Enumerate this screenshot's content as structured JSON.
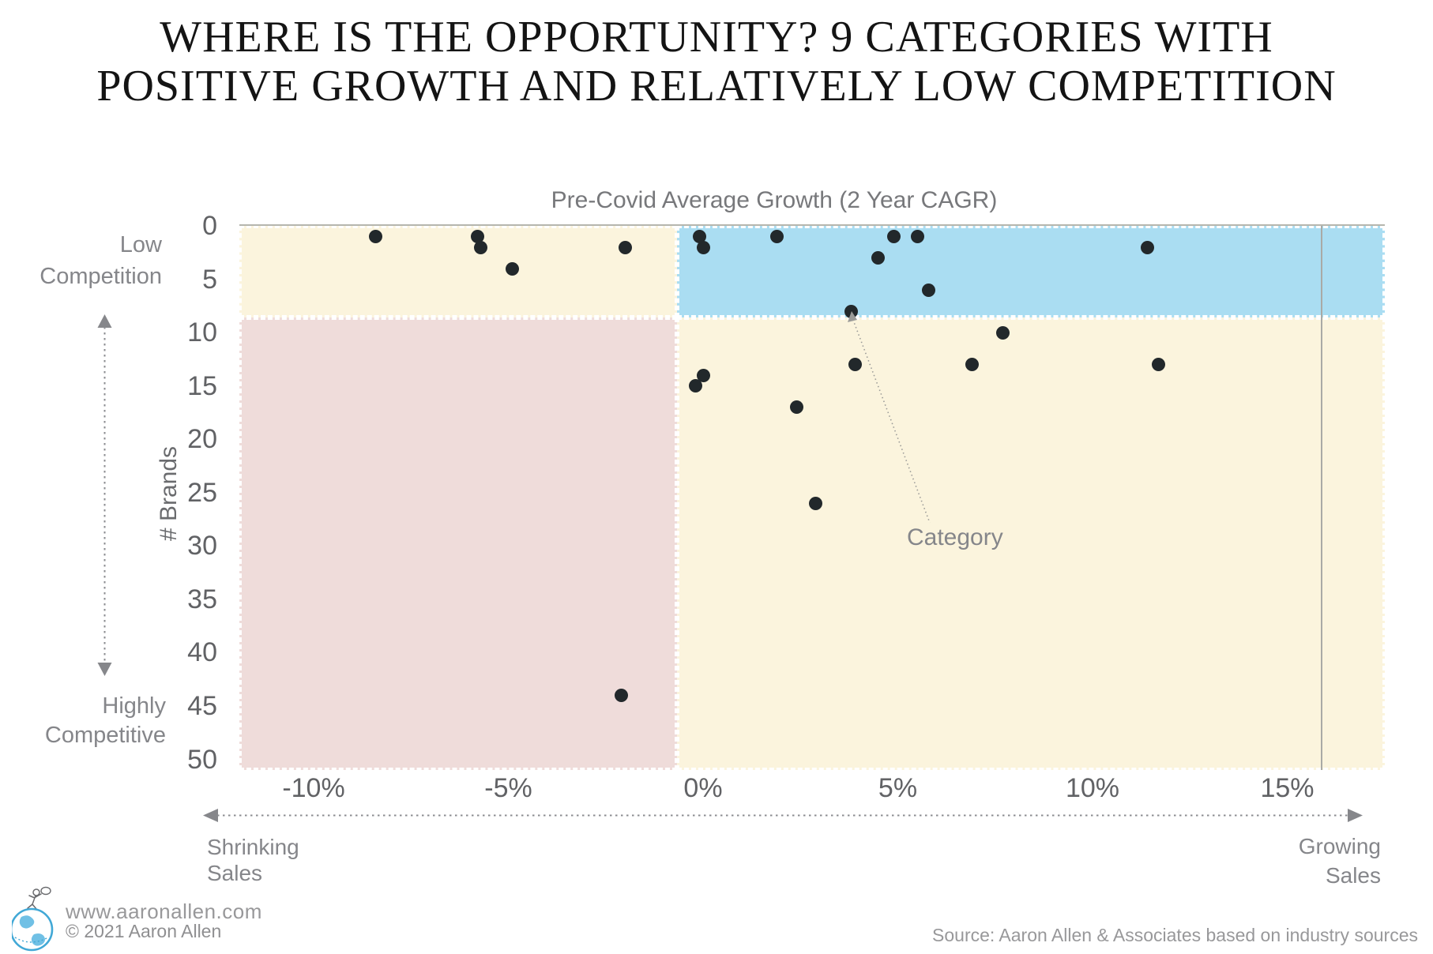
{
  "title": {
    "line1": "WHERE IS THE OPPORTUNITY? 9 CATEGORIES WITH",
    "line2": "POSITIVE GROWTH AND RELATIVELY LOW COMPETITION"
  },
  "chart_data": {
    "type": "scatter",
    "x_axis": {
      "title": "Pre-Covid Average Growth (2 Year CAGR)",
      "ticks": [
        {
          "label": "-10%",
          "value": -10
        },
        {
          "label": "-5%",
          "value": -5
        },
        {
          "label": "0%",
          "value": 0
        },
        {
          "label": "5%",
          "value": 5
        },
        {
          "label": "10%",
          "value": 10
        },
        {
          "label": "15%",
          "value": 15
        }
      ],
      "range": [
        -11.9,
        17.5
      ]
    },
    "y_axis": {
      "title": "# Brands",
      "ticks": [
        {
          "label": "0",
          "value": 0
        },
        {
          "label": "5",
          "value": 5
        },
        {
          "label": "10",
          "value": 10
        },
        {
          "label": "15",
          "value": 15
        },
        {
          "label": "20",
          "value": 20
        },
        {
          "label": "25",
          "value": 25
        },
        {
          "label": "30",
          "value": 30
        },
        {
          "label": "35",
          "value": 35
        },
        {
          "label": "40",
          "value": 40
        },
        {
          "label": "45",
          "value": 45
        },
        {
          "label": "50",
          "value": 50
        }
      ],
      "range": [
        0,
        51
      ],
      "inverted": true
    },
    "quadrant_split": {
      "growth": -0.7,
      "brands": 8.6
    },
    "colors": {
      "cream_quadrant": "#FBF4DD",
      "opportunity_quadrant": "#AADDF2",
      "highly_competitive_quadrant": "#EFDCDA",
      "point": "#22282b",
      "grid_line": "#b5b6ae"
    },
    "points": [
      {
        "growth": -8.4,
        "brands": 1
      },
      {
        "growth": -5.8,
        "brands": 1
      },
      {
        "growth": -5.7,
        "brands": 2
      },
      {
        "growth": -4.9,
        "brands": 4
      },
      {
        "growth": -2.0,
        "brands": 2
      },
      {
        "growth": -0.1,
        "brands": 1
      },
      {
        "growth": 0.0,
        "brands": 2
      },
      {
        "growth": 1.9,
        "brands": 1
      },
      {
        "growth": 4.9,
        "brands": 1
      },
      {
        "growth": 5.5,
        "brands": 1
      },
      {
        "growth": 4.5,
        "brands": 3
      },
      {
        "growth": 5.8,
        "brands": 6
      },
      {
        "growth": 3.8,
        "brands": 8
      },
      {
        "growth": 11.4,
        "brands": 2
      },
      {
        "growth": 0.0,
        "brands": 14
      },
      {
        "growth": -0.2,
        "brands": 15
      },
      {
        "growth": 2.4,
        "brands": 17
      },
      {
        "growth": 2.9,
        "brands": 26
      },
      {
        "growth": 3.9,
        "brands": 13,
        "label": "Category"
      },
      {
        "growth": 6.9,
        "brands": 13
      },
      {
        "growth": 7.7,
        "brands": 10
      },
      {
        "growth": 11.7,
        "brands": 13
      },
      {
        "growth": -2.1,
        "brands": 44
      }
    ],
    "annotations": {
      "point_label": "Category",
      "low1": "Low",
      "low2": "Competition",
      "high1": "Highly",
      "high2": "Competitive",
      "shrink1": "Shrinking",
      "shrink2": "Sales",
      "grow1": "Growing",
      "grow2": "Sales"
    }
  },
  "footer": {
    "website": "www.aaronallen.com",
    "copyright": "© 2021 Aaron Allen",
    "source": "Source: Aaron Allen & Associates based on industry sources"
  }
}
